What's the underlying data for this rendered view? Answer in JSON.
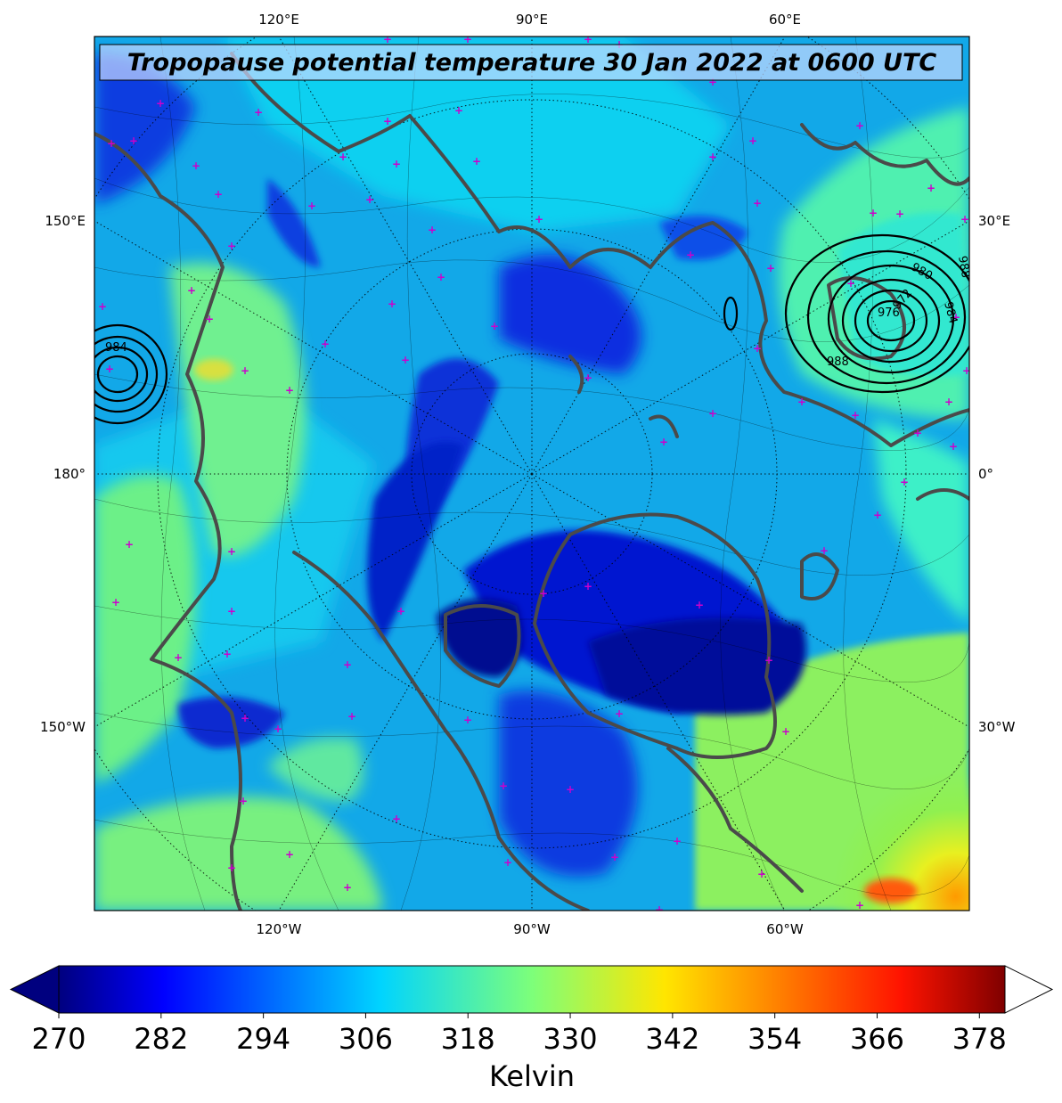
{
  "map": {
    "title": "Tropopause potential temperature 30 Jan 2022 at 0600 UTC",
    "projection": "north-polar-stereographic",
    "lon_labels_top": [
      "120°E",
      "90°E",
      "60°E"
    ],
    "lon_labels_bottom": [
      "120°W",
      "90°W",
      "60°W"
    ],
    "lon_labels_left": [
      "150°E",
      "180°",
      "150°W"
    ],
    "lon_labels_right": [
      "30°E",
      "0°",
      "30°W"
    ],
    "pressure_contour_labels": [
      "984",
      "988",
      "980",
      "976",
      "972",
      "984",
      "988"
    ],
    "colors": {
      "coastline": "#4a4a4a",
      "contour": "#000000",
      "marker": "#cc00cc",
      "title_box": "#c8d8ff"
    }
  },
  "colorbar": {
    "label": "Kelvin",
    "tick_labels": [
      "270",
      "282",
      "294",
      "306",
      "318",
      "330",
      "342",
      "354",
      "366",
      "378"
    ],
    "range": [
      270,
      381
    ],
    "extend": "both",
    "colormap": "jet"
  }
}
